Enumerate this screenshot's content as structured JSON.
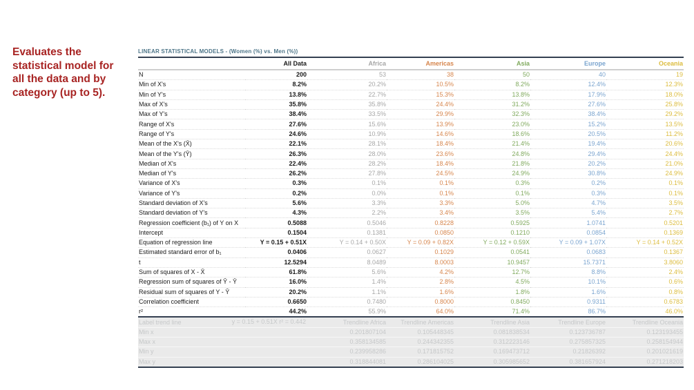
{
  "note": {
    "text": "Evaluates the statistical model for all the data and by category (up to 5).",
    "color": "#a82423"
  },
  "table": {
    "title": "LINEAR STATISTICAL MODELS - (Women (%) vs. Men (%))",
    "title_color": "#4d7588",
    "border_color": "#333f50",
    "columns": [
      {
        "label": "",
        "color": "#1a1a1a"
      },
      {
        "label": "All Data",
        "color": "#1a1a1a"
      },
      {
        "label": "Africa",
        "color": "#a6a6a6"
      },
      {
        "label": "Americas",
        "color": "#d6854c"
      },
      {
        "label": "Asia",
        "color": "#80aa5e"
      },
      {
        "label": "Europe",
        "color": "#7aa4cf"
      },
      {
        "label": "Oceania",
        "color": "#dcbc3e"
      }
    ],
    "rows": [
      {
        "label": "N",
        "values": [
          "200",
          "53",
          "38",
          "50",
          "40",
          "19"
        ]
      },
      {
        "label": "Min of X's",
        "values": [
          "8.2%",
          "20.2%",
          "10.5%",
          "8.2%",
          "12.4%",
          "12.3%"
        ]
      },
      {
        "label": "Min of Y's",
        "values": [
          "13.8%",
          "22.7%",
          "15.3%",
          "13.8%",
          "17.9%",
          "18.0%"
        ]
      },
      {
        "label": "Max of X's",
        "values": [
          "35.8%",
          "35.8%",
          "24.4%",
          "31.2%",
          "27.6%",
          "25.8%"
        ]
      },
      {
        "label": "Max of Y's",
        "values": [
          "38.4%",
          "33.5%",
          "29.9%",
          "32.3%",
          "38.4%",
          "29.2%"
        ]
      },
      {
        "label": "Range of X's",
        "values": [
          "27.6%",
          "15.6%",
          "13.9%",
          "23.0%",
          "15.2%",
          "13.5%"
        ]
      },
      {
        "label": "Range of Y's",
        "values": [
          "24.6%",
          "10.9%",
          "14.6%",
          "18.6%",
          "20.5%",
          "11.2%"
        ]
      },
      {
        "label": "Mean of the X's (X̄)",
        "values": [
          "22.1%",
          "28.1%",
          "18.4%",
          "21.4%",
          "19.4%",
          "20.6%"
        ]
      },
      {
        "label": "Mean of the Y's (Ȳ)",
        "values": [
          "26.3%",
          "28.0%",
          "23.6%",
          "24.8%",
          "29.4%",
          "24.4%"
        ]
      },
      {
        "label": "Median of X's",
        "values": [
          "22.4%",
          "28.2%",
          "18.4%",
          "21.8%",
          "20.2%",
          "21.0%"
        ]
      },
      {
        "label": "Median of Y's",
        "values": [
          "26.2%",
          "27.8%",
          "24.5%",
          "24.9%",
          "30.8%",
          "24.9%"
        ]
      },
      {
        "label": "Variance of X's",
        "values": [
          "0.3%",
          "0.1%",
          "0.1%",
          "0.3%",
          "0.2%",
          "0.1%"
        ]
      },
      {
        "label": "Variance of Y's",
        "values": [
          "0.2%",
          "0.0%",
          "0.1%",
          "0.1%",
          "0.3%",
          "0.1%"
        ]
      },
      {
        "label": "Standard deviation of X's",
        "values": [
          "5.6%",
          "3.3%",
          "3.3%",
          "5.0%",
          "4.7%",
          "3.5%"
        ]
      },
      {
        "label": "Standard deviation of Y's",
        "values": [
          "4.3%",
          "2.2%",
          "3.4%",
          "3.5%",
          "5.4%",
          "2.7%"
        ]
      },
      {
        "label": "Regression coefficient (b₁) of Y on X",
        "values": [
          "0.5088",
          "0.5046",
          "0.8228",
          "0.5925",
          "1.0741",
          "0.5201"
        ]
      },
      {
        "label": "Intercept",
        "values": [
          "0.1504",
          "0.1381",
          "0.0850",
          "0.1210",
          "0.0854",
          "0.1369"
        ]
      },
      {
        "label": "Equation of regression line",
        "values": [
          "Y = 0.15 + 0.51X",
          "Y = 0.14 + 0.50X",
          "Y = 0.09 + 0.82X",
          "Y = 0.12 + 0.59X",
          "Y = 0.09 + 1.07X",
          "Y = 0.14 + 0.52X"
        ]
      },
      {
        "label": "Estimated standard error of b₁",
        "values": [
          "0.0406",
          "0.0627",
          "0.1029",
          "0.0541",
          "0.0683",
          "0.1367"
        ]
      },
      {
        "label": "t",
        "values": [
          "12.5294",
          "8.0489",
          "8.0003",
          "10.9457",
          "15.7371",
          "3.8060"
        ]
      },
      {
        "label": "Sum of squares of X - X̄",
        "values": [
          "61.8%",
          "5.6%",
          "4.2%",
          "12.7%",
          "8.8%",
          "2.4%"
        ]
      },
      {
        "label": "Regression sum of squares of Ŷ - Ȳ",
        "values": [
          "16.0%",
          "1.4%",
          "2.8%",
          "4.5%",
          "10.1%",
          "0.6%"
        ]
      },
      {
        "label": "Residual sum of squares of Y - Ŷ",
        "values": [
          "20.2%",
          "1.1%",
          "1.6%",
          "1.8%",
          "1.6%",
          "0.8%"
        ]
      },
      {
        "label": "Correlation coefficient",
        "values": [
          "0.6650",
          "0.7480",
          "0.8000",
          "0.8450",
          "0.9311",
          "0.6783"
        ]
      },
      {
        "label": "r²",
        "values": [
          "44.2%",
          "55.9%",
          "64.0%",
          "71.4%",
          "86.7%",
          "46.0%"
        ]
      }
    ],
    "trend_section": {
      "rows": [
        {
          "label": "Label trend line",
          "values": [
            "y = 0.15 + 0.51X  r² = 0.442",
            "Trendline Africa",
            "Trendline Americas",
            "Trendline Asia",
            "Trendline Europe",
            "Trendline Oceania"
          ]
        },
        {
          "label": "Min x",
          "values": [
            "",
            "0.201807104",
            "0.105448345",
            "0.081838534",
            "0.123736787",
            "0.123193455"
          ]
        },
        {
          "label": "Max x",
          "values": [
            "",
            "0.358134585",
            "0.244342355",
            "0.312223146",
            "0.275857325",
            "0.258154944"
          ]
        },
        {
          "label": "Min y",
          "values": [
            "",
            "0.239958286",
            "0.171815752",
            "0.169473712",
            "0.21826392",
            "0.201021619"
          ]
        },
        {
          "label": "Max y",
          "values": [
            "",
            "0.318844081",
            "0.286104025",
            "0.305985652",
            "0.381657924",
            "0.271218203"
          ]
        }
      ]
    }
  }
}
